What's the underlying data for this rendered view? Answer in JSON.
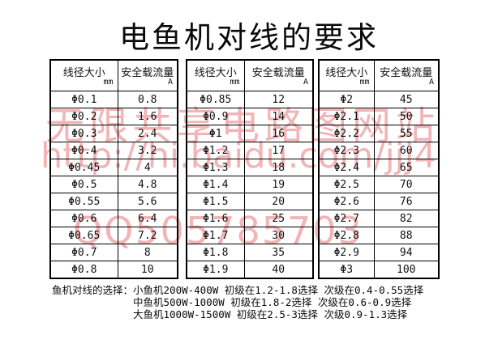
{
  "title": "电鱼机对线的要求",
  "tables": [
    {
      "col1_header": "线径大小",
      "col1_unit": "mm",
      "col2_header": "安全载流量",
      "col2_unit": "A",
      "rows": [
        [
          "Φ0.1",
          "0.8"
        ],
        [
          "Φ0.2",
          "1.6"
        ],
        [
          "Φ0.3",
          "2.4"
        ],
        [
          "Φ0.4",
          "3.2"
        ],
        [
          "Φ0.45",
          "4"
        ],
        [
          "Φ0.5",
          "4.8"
        ],
        [
          "Φ0.55",
          "5.6"
        ],
        [
          "Φ0.6",
          "6.4"
        ],
        [
          "Φ0.65",
          "7.2"
        ],
        [
          "Φ0.7",
          "8"
        ],
        [
          "Φ0.8",
          "10"
        ]
      ]
    },
    {
      "col1_header": "线径大小",
      "col1_unit": "mm",
      "col2_header": "安全载流量",
      "col2_unit": "A",
      "rows": [
        [
          "Φ0.85",
          "12"
        ],
        [
          "Φ0.9",
          "14"
        ],
        [
          "Φ1",
          "16"
        ],
        [
          "Φ1.2",
          "17"
        ],
        [
          "Φ1.3",
          "18"
        ],
        [
          "Φ1.4",
          "19"
        ],
        [
          "Φ1.5",
          "20"
        ],
        [
          "Φ1.6",
          "25"
        ],
        [
          "Φ1.7",
          "30"
        ],
        [
          "Φ1.8",
          "35"
        ],
        [
          "Φ1.9",
          "40"
        ]
      ]
    },
    {
      "col1_header": "线径大小",
      "col1_unit": "mm",
      "col2_header": "安全载流量",
      "col2_unit": "A",
      "rows": [
        [
          "Φ2",
          "45"
        ],
        [
          "Φ2.1",
          "50"
        ],
        [
          "Φ2.2",
          "55"
        ],
        [
          "Φ2.3",
          "60"
        ],
        [
          "Φ2.4",
          "65"
        ],
        [
          "Φ2.5",
          "70"
        ],
        [
          "Φ2.6",
          "76"
        ],
        [
          "Φ2.7",
          "82"
        ],
        [
          "Φ2.8",
          "88"
        ],
        [
          "Φ2.9",
          "94"
        ],
        [
          "Φ3",
          "100"
        ]
      ]
    }
  ],
  "notes": {
    "label": "鱼机对线的选择：",
    "lines": [
      "小鱼机200W-400W 初级在1.2-1.8选择 次级在0.4-0.55选择",
      "中鱼机500W-1000W 初级在1.8-2选择 次级在0.6-0.9选择",
      "大鱼机1000W-1500W 初级在2.5-3选择 次级0.9-1.3选择"
    ]
  },
  "watermark": {
    "line1": "无限共享电路图网站",
    "line2": "http://hi.baidu.com/jjj4",
    "line3": "QQ505785703",
    "color": "#f2b4b4"
  }
}
